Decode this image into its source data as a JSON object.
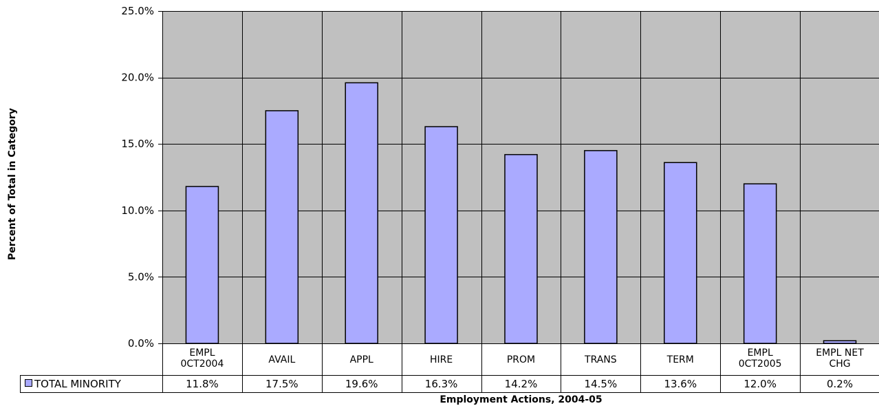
{
  "chart_data": {
    "type": "bar",
    "title": "",
    "xlabel": "Employment Actions, 2004-05",
    "ylabel": "Percent of Total in Category",
    "ylim": [
      0,
      25
    ],
    "yticks": [
      "0.0%",
      "5.0%",
      "10.0%",
      "15.0%",
      "20.0%",
      "25.0%"
    ],
    "grid": true,
    "legend_position": "bottom-left (data table)",
    "categories": [
      [
        "EMPL",
        "0CT2004"
      ],
      [
        "AVAIL"
      ],
      [
        "APPL"
      ],
      [
        "HIRE"
      ],
      [
        "PROM"
      ],
      [
        "TRANS"
      ],
      [
        "TERM"
      ],
      [
        "EMPL",
        "0CT2005"
      ],
      [
        "EMPL NET",
        "CHG"
      ]
    ],
    "series": [
      {
        "name": "TOTAL MINORITY",
        "values": [
          11.8,
          17.5,
          19.6,
          16.3,
          14.2,
          14.5,
          13.6,
          12.0,
          0.2
        ],
        "labels": [
          "11.8%",
          "17.5%",
          "19.6%",
          "16.3%",
          "14.2%",
          "14.5%",
          "13.6%",
          "12.0%",
          "0.2%"
        ],
        "color": "#aaaaff"
      }
    ],
    "colors": {
      "plot_bg": "#c0c0c0",
      "grid": "#000000",
      "bar_stroke": "#000000"
    }
  }
}
